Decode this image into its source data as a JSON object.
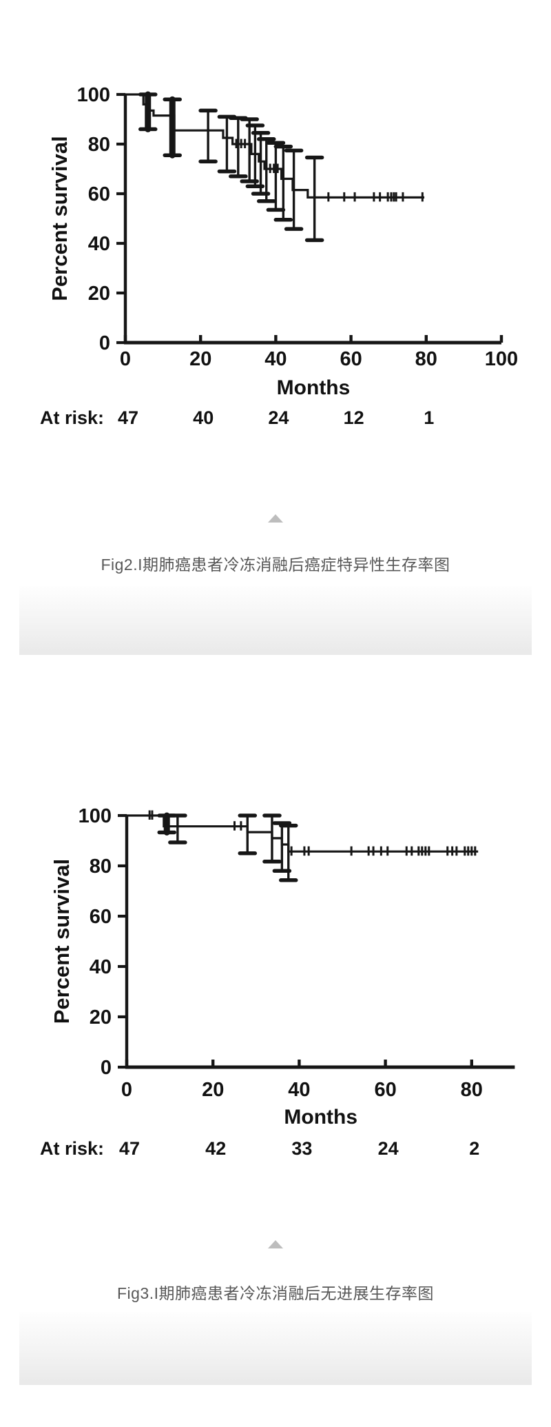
{
  "page": {
    "background_color": "#ffffff",
    "divider_arrow_color": "#bdbdbd",
    "band_gradient_top": "#fefefe",
    "band_gradient_bottom": "#e9e9e9",
    "ink_color": "#161616",
    "caption_color": "#575757"
  },
  "icons": {
    "divider_arrow": "up-triangle"
  },
  "figures": [
    {
      "caption": "Fig2.I期肺癌患者冷冻消融后癌症特异性生存率图"
    },
    {
      "caption": "Fig3.I期肺癌患者冷冻消融后无进展生存率图"
    }
  ],
  "chart_data": [
    {
      "type": "line",
      "subtype": "kaplan-meier-step",
      "title": "",
      "xlabel": "Months",
      "ylabel": "Percent survival",
      "xlim": [
        0,
        100
      ],
      "ylim": [
        0,
        100
      ],
      "xticks": [
        0,
        20,
        40,
        60,
        80,
        100
      ],
      "yticks": [
        0,
        20,
        40,
        60,
        80,
        100
      ],
      "grid": false,
      "legend": "none",
      "line_color": "#161616",
      "steps": [
        [
          0,
          100
        ],
        [
          4.8,
          100
        ],
        [
          4.8,
          96
        ],
        [
          6,
          96
        ],
        [
          6,
          93.5
        ],
        [
          7.5,
          93.5
        ],
        [
          7.5,
          91.5
        ],
        [
          13,
          91.5
        ],
        [
          13,
          85.5
        ],
        [
          26,
          85.5
        ],
        [
          26,
          82.5
        ],
        [
          28.5,
          82.5
        ],
        [
          28.5,
          80
        ],
        [
          33.5,
          80
        ],
        [
          33.5,
          76
        ],
        [
          35.5,
          76
        ],
        [
          35.5,
          73
        ],
        [
          37,
          73
        ],
        [
          37,
          70
        ],
        [
          41.5,
          70
        ],
        [
          41.5,
          66
        ],
        [
          44.5,
          66
        ],
        [
          44.5,
          61.5
        ],
        [
          48.5,
          61.5
        ],
        [
          48.5,
          58.5
        ],
        [
          79.5,
          58.5
        ]
      ],
      "censor_marks": [
        [
          29.5,
          80
        ],
        [
          30.8,
          80
        ],
        [
          31.8,
          80
        ],
        [
          38.5,
          70
        ],
        [
          39.5,
          70
        ],
        [
          40.5,
          70
        ],
        [
          54,
          58.5
        ],
        [
          58.2,
          58.5
        ],
        [
          61,
          58.5
        ],
        [
          66.1,
          58.5
        ],
        [
          67.7,
          58.5
        ],
        [
          69.8,
          58.5
        ],
        [
          70.7,
          58.5
        ],
        [
          71.4,
          58.5
        ],
        [
          72,
          58.5
        ],
        [
          73.8,
          58.5
        ],
        [
          79,
          58.5
        ]
      ],
      "error_bars": [
        {
          "x": 6,
          "lo": 86,
          "hi": 100,
          "thick": true
        },
        {
          "x": 12.5,
          "lo": 75.5,
          "hi": 98,
          "thick": true
        },
        {
          "x": 22,
          "lo": 73,
          "hi": 93.5,
          "thick": false
        },
        {
          "x": 27,
          "lo": 69,
          "hi": 91,
          "thick": false
        },
        {
          "x": 30,
          "lo": 67,
          "hi": 90.5,
          "thick": false
        },
        {
          "x": 33,
          "lo": 65,
          "hi": 90,
          "thick": false
        },
        {
          "x": 34.5,
          "lo": 63,
          "hi": 87.5,
          "thick": false
        },
        {
          "x": 36,
          "lo": 60,
          "hi": 84.5,
          "thick": false
        },
        {
          "x": 37.5,
          "lo": 57,
          "hi": 82,
          "thick": false
        },
        {
          "x": 40,
          "lo": 53.5,
          "hi": 80.5,
          "thick": false
        },
        {
          "x": 42,
          "lo": 49.5,
          "hi": 79,
          "thick": false
        },
        {
          "x": 44.8,
          "lo": 45.8,
          "hi": 77.4,
          "thick": false
        },
        {
          "x": 50.3,
          "lo": 41.3,
          "hi": 74.6,
          "thick": false
        }
      ],
      "at_risk": {
        "label": "At risk:",
        "months": [
          0,
          20,
          40,
          60,
          80
        ],
        "values": [
          47,
          40,
          24,
          12,
          1
        ]
      }
    },
    {
      "type": "line",
      "subtype": "kaplan-meier-step",
      "title": "",
      "xlabel": "Months",
      "ylabel": "Percent survival",
      "xlim": [
        0,
        90
      ],
      "ylim": [
        0,
        100
      ],
      "xticks": [
        0,
        20,
        40,
        60,
        80
      ],
      "yticks": [
        0,
        20,
        40,
        60,
        80,
        100
      ],
      "grid": false,
      "legend": "none",
      "line_color": "#161616",
      "steps": [
        [
          0,
          100
        ],
        [
          8.6,
          100
        ],
        [
          8.6,
          95.7
        ],
        [
          28,
          95.7
        ],
        [
          28,
          93.4
        ],
        [
          33.7,
          93.4
        ],
        [
          33.7,
          91
        ],
        [
          36,
          91
        ],
        [
          36,
          88.5
        ],
        [
          37.5,
          88.5
        ],
        [
          37.5,
          85.7
        ],
        [
          81.5,
          85.7
        ]
      ],
      "censor_marks": [
        [
          5.3,
          100
        ],
        [
          5.9,
          100
        ],
        [
          25,
          95.7
        ],
        [
          26.5,
          95.7
        ],
        [
          38.2,
          85.7
        ],
        [
          41.2,
          85.7
        ],
        [
          42.2,
          85.7
        ],
        [
          52.1,
          85.7
        ],
        [
          56.1,
          85.7
        ],
        [
          57.2,
          85.7
        ],
        [
          59,
          85.7
        ],
        [
          60.5,
          85.7
        ],
        [
          64.9,
          85.7
        ],
        [
          66.1,
          85.7
        ],
        [
          67.7,
          85.7
        ],
        [
          68.5,
          85.7
        ],
        [
          69.3,
          85.7
        ],
        [
          70.1,
          85.7
        ],
        [
          74.4,
          85.7
        ],
        [
          75.5,
          85.7
        ],
        [
          76.5,
          85.7
        ],
        [
          78.4,
          85.7
        ],
        [
          79.2,
          85.7
        ],
        [
          80,
          85.7
        ],
        [
          80.8,
          85.7
        ]
      ],
      "error_bars": [
        {
          "x": 9.3,
          "lo": 93.3,
          "hi": 100,
          "thick": true
        },
        {
          "x": 11.8,
          "lo": 89.3,
          "hi": 100,
          "thick": false
        },
        {
          "x": 28,
          "lo": 85,
          "hi": 100,
          "thick": false
        },
        {
          "x": 33.7,
          "lo": 81.7,
          "hi": 100,
          "thick": false
        },
        {
          "x": 36,
          "lo": 78,
          "hi": 97,
          "thick": false
        },
        {
          "x": 37.5,
          "lo": 74.3,
          "hi": 96,
          "thick": false
        }
      ],
      "at_risk": {
        "label": "At risk:",
        "months": [
          0,
          20,
          40,
          60,
          80
        ],
        "values": [
          47,
          42,
          33,
          24,
          2
        ]
      }
    }
  ]
}
